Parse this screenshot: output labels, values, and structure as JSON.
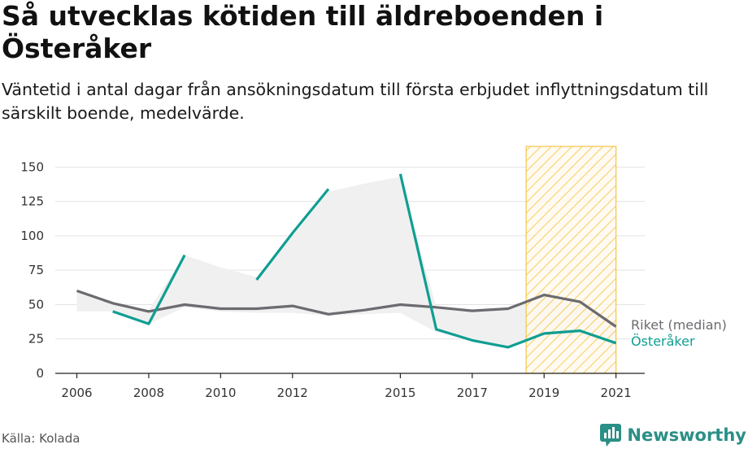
{
  "title": "Så utvecklas kötiden till äldreboenden i Österåker",
  "subtitle": "Väntetid i antal dagar från ansökningsdatum till första erbjudet inflyttningsdatum till särskilt boende, medelvärde.",
  "source": "Källa: Kolada",
  "brand": {
    "name": "Newsworthy",
    "icon": "newsworthy-logo-icon"
  },
  "colors": {
    "riket": "#6b6b70",
    "osteraker": "#0f9e92",
    "band": "#f0f0f0",
    "highlight": "#f5c542",
    "grid": "#e2e2e2"
  },
  "chart_data": {
    "type": "line",
    "x": [
      2006,
      2007,
      2008,
      2009,
      2010,
      2011,
      2012,
      2013,
      2014,
      2015,
      2016,
      2017,
      2018,
      2019,
      2020,
      2021
    ],
    "x_ticks": [
      2006,
      2008,
      2010,
      2012,
      2015,
      2017,
      2019,
      2021
    ],
    "y_ticks": [
      0,
      25,
      50,
      75,
      100,
      125,
      150
    ],
    "ylim": [
      0,
      165
    ],
    "xlim": [
      2005.4,
      2021.8
    ],
    "grid": true,
    "highlight_range": [
      2018.5,
      2021
    ],
    "series": [
      {
        "name": "Riket (median)",
        "values": [
          60,
          51,
          45,
          50,
          47,
          47,
          49,
          43,
          46,
          50,
          48,
          45.5,
          47,
          57,
          52,
          34
        ],
        "color": "#6b6b70"
      },
      {
        "name": "Österåker",
        "values": [
          null,
          45,
          36,
          86,
          null,
          68,
          102,
          134,
          null,
          145,
          32,
          24,
          19,
          29,
          31,
          22
        ],
        "color": "#0f9e92"
      }
    ],
    "range_band": {
      "x": [
        2006,
        2007,
        2008,
        2009,
        2010,
        2011,
        2012,
        2013,
        2014,
        2015,
        2016,
        2017,
        2018,
        2019,
        2020,
        2021
      ],
      "lower": [
        45,
        45,
        36,
        48,
        45,
        44,
        44,
        42,
        43,
        44,
        30,
        24,
        19,
        26,
        27,
        21
      ],
      "upper": [
        60,
        51,
        46,
        86,
        77,
        70,
        100,
        132,
        138,
        143,
        48,
        46,
        47,
        57,
        52,
        34
      ]
    }
  }
}
